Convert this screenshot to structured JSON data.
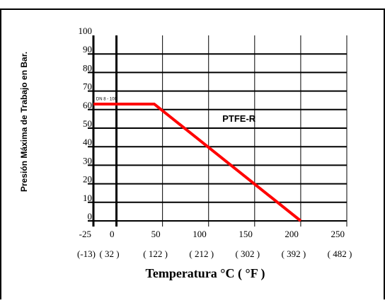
{
  "chart_data": {
    "type": "line",
    "ylabel": "Presión Máxima de Trabajo en Bar.",
    "xlabel": "Temperatura °C  ( °F )",
    "xlim": [
      -25,
      250
    ],
    "ylim": [
      0,
      100
    ],
    "x_ticks": [
      -25,
      0,
      50,
      100,
      150,
      200,
      250
    ],
    "x_tick_labels": [
      "-25",
      "0",
      "50",
      "100",
      "150",
      "200",
      "250"
    ],
    "x_tick_labels_f": [
      "(-13)",
      "( 32 )",
      "( 122 )",
      "( 212 )",
      "( 302 )",
      "( 392 )",
      "( 482 )"
    ],
    "y_ticks": [
      0,
      10,
      20,
      30,
      40,
      50,
      60,
      70,
      80,
      90,
      100
    ],
    "y_tick_labels": [
      "0",
      "10",
      "20",
      "30",
      "40",
      "50",
      "60",
      "70",
      "80",
      "90",
      "100"
    ],
    "grid": true,
    "series": [
      {
        "name": "PTFE-R",
        "color": "#ff0000",
        "x": [
          -25,
          41,
          200
        ],
        "y": [
          63,
          63,
          0
        ]
      }
    ],
    "annotations": [
      {
        "text": "DN 8 - 100",
        "x": -22,
        "y": 65
      }
    ]
  }
}
